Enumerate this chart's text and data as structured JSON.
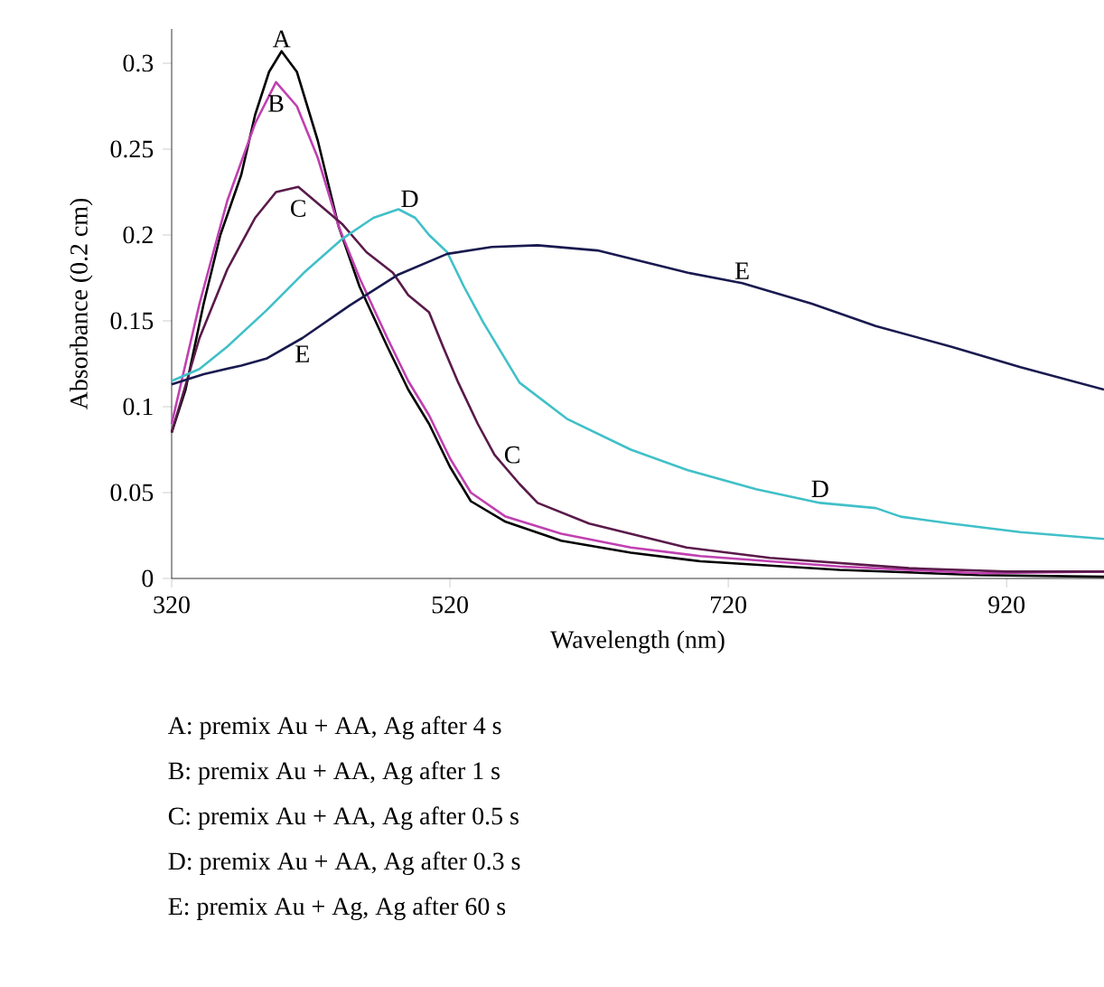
{
  "chart_data": {
    "type": "line",
    "xlabel": "Wavelength (nm)",
    "ylabel": "Absorbance (0.2 cm)",
    "xlim": [
      320,
      990
    ],
    "ylim": [
      0,
      0.32
    ],
    "xticks": [
      320,
      520,
      720,
      920
    ],
    "yticks": [
      0,
      0.05,
      0.1,
      0.15,
      0.2,
      0.25,
      0.3
    ],
    "grid": false,
    "marker": "none",
    "line_style": "solid",
    "series": [
      {
        "color": "#000000",
        "x": [
          320,
          330,
          343,
          355,
          370,
          380,
          390,
          399,
          410,
          425,
          440,
          455,
          475,
          490,
          505,
          520,
          535,
          560,
          600,
          650,
          700,
          800,
          900,
          990
        ],
        "values": [
          0.085,
          0.11,
          0.16,
          0.2,
          0.235,
          0.27,
          0.295,
          0.307,
          0.295,
          0.255,
          0.205,
          0.17,
          0.135,
          0.11,
          0.09,
          0.065,
          0.045,
          0.033,
          0.022,
          0.015,
          0.01,
          0.005,
          0.002,
          0.001
        ]
      },
      {
        "color": "#c040b0",
        "x": [
          320,
          340,
          360,
          380,
          395,
          410,
          425,
          440,
          455,
          475,
          490,
          505,
          520,
          535,
          560,
          600,
          650,
          700,
          800,
          900,
          990
        ],
        "values": [
          0.09,
          0.16,
          0.22,
          0.265,
          0.289,
          0.275,
          0.245,
          0.205,
          0.175,
          0.14,
          0.115,
          0.095,
          0.07,
          0.05,
          0.036,
          0.026,
          0.018,
          0.013,
          0.007,
          0.003,
          0.004
        ]
      },
      {
        "color": "#5a1a4a",
        "x": [
          320,
          340,
          360,
          380,
          395,
          411,
          430,
          443,
          460,
          479,
          490,
          505,
          515,
          526,
          540,
          552,
          570,
          583,
          620,
          690,
          750,
          850,
          920,
          990
        ],
        "values": [
          0.085,
          0.14,
          0.18,
          0.21,
          0.225,
          0.228,
          0.215,
          0.206,
          0.19,
          0.178,
          0.165,
          0.155,
          0.135,
          0.114,
          0.09,
          0.072,
          0.055,
          0.044,
          0.032,
          0.018,
          0.012,
          0.006,
          0.004,
          0.004
        ]
      },
      {
        "color": "#40c0c8",
        "x": [
          320,
          340,
          360,
          388,
          415,
          443,
          465,
          483,
          495,
          505,
          518,
          530,
          544,
          570,
          604,
          650,
          691,
          740,
          786,
          826,
          844,
          880,
          930,
          990
        ],
        "values": [
          0.115,
          0.122,
          0.135,
          0.156,
          0.178,
          0.198,
          0.21,
          0.215,
          0.21,
          0.2,
          0.19,
          0.17,
          0.149,
          0.114,
          0.093,
          0.075,
          0.063,
          0.052,
          0.044,
          0.041,
          0.036,
          0.032,
          0.027,
          0.023
        ]
      },
      {
        "color": "#1a1a50",
        "x": [
          320,
          343,
          370,
          388,
          414,
          448,
          483,
          518,
          550,
          583,
          626,
          691,
          730,
          780,
          826,
          880,
          930,
          990
        ],
        "values": [
          0.113,
          0.119,
          0.124,
          0.128,
          0.14,
          0.159,
          0.177,
          0.189,
          0.193,
          0.194,
          0.191,
          0.178,
          0.172,
          0.16,
          0.147,
          0.135,
          0.123,
          0.11
        ]
      }
    ],
    "annotations": [
      {
        "text": "A",
        "x": 399,
        "y": 0.307
      },
      {
        "text": "B",
        "x": 395,
        "y": 0.289
      },
      {
        "text": "C",
        "x": 411,
        "y": 0.228
      },
      {
        "text": "D",
        "x": 483,
        "y": 0.215
      },
      {
        "text": "E",
        "x": 730,
        "y": 0.172
      },
      {
        "text": "E",
        "x": 414,
        "y": 0.14
      },
      {
        "text": "C",
        "x": 552,
        "y": 0.072
      },
      {
        "text": "D",
        "x": 786,
        "y": 0.044
      },
      "A: premix Au + AA, Ag after 4 s",
      "B: premix Au + AA, Ag after 1 s",
      "C: premix Au + AA, Ag after 0.5 s",
      "D: premix Au + AA, Ag after 0.3 s",
      "E: premix Au + Ag, Ag after 60 s"
    ]
  }
}
